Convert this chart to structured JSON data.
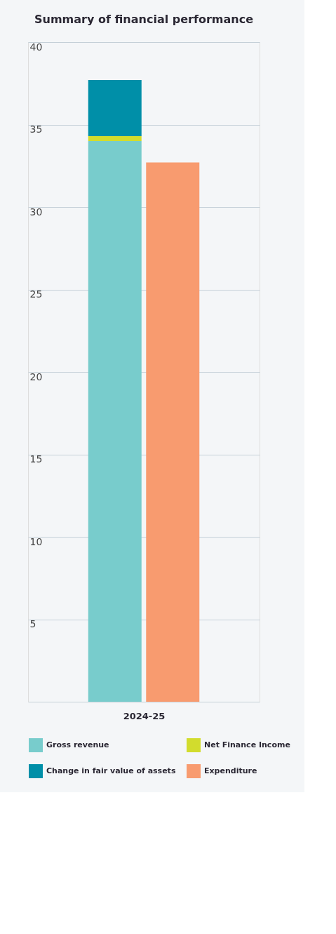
{
  "chart_data": {
    "type": "bar",
    "title": "Summary of financial performance",
    "xlabel": "2024-25",
    "categories": [
      null,
      null
    ],
    "stacked": true,
    "series": [
      {
        "name": "Gross revenue",
        "color": "#78cccc",
        "values": [
          34.0,
          null
        ]
      },
      {
        "name": "Net Finance Income",
        "color": "#d2dc2d",
        "values": [
          0.3,
          null
        ]
      },
      {
        "name": "Change in fair value of assets",
        "color": "#008fa8",
        "values": [
          3.4,
          null
        ]
      },
      {
        "name": "Expenditure",
        "color": "#f89b6f",
        "values": [
          null,
          32.7
        ]
      }
    ],
    "ylim": [
      0,
      40
    ],
    "yticks": [
      5,
      10,
      15,
      20,
      25,
      30,
      35,
      40
    ],
    "grid": "y",
    "legend": "bottom"
  }
}
